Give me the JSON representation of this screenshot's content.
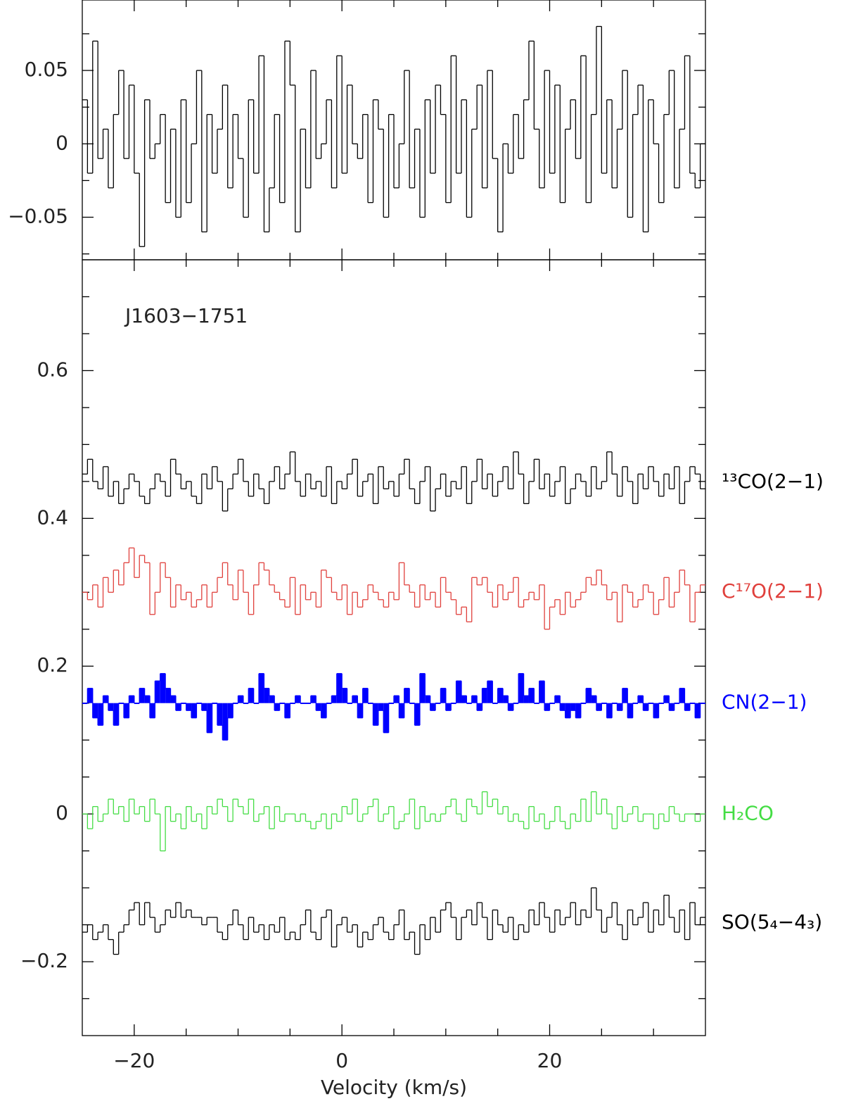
{
  "chart_data": [
    {
      "type": "step",
      "x": [
        -24.75,
        -24.25,
        -23.75,
        -23.25,
        -22.75,
        -22.25,
        -21.75,
        -21.25,
        -20.75,
        -20.25,
        -19.75,
        -19.25,
        -18.75,
        -18.25,
        -17.75,
        -17.25,
        -16.75,
        -16.25,
        -15.75,
        -15.25,
        -14.75,
        -14.25,
        -13.75,
        -13.25,
        -12.75,
        -12.25,
        -11.75,
        -11.25,
        -10.75,
        -10.25,
        -9.75,
        -9.25,
        -8.75,
        -8.25,
        -7.75,
        -7.25,
        -6.75,
        -6.25,
        -5.75,
        -5.25,
        -4.75,
        -4.25,
        -3.75,
        -3.25,
        -2.75,
        -2.25,
        -1.75,
        -1.25,
        -0.75,
        -0.25,
        0.25,
        0.75,
        1.25,
        1.75,
        2.25,
        2.75,
        3.25,
        3.75,
        4.25,
        4.75,
        5.25,
        5.75,
        6.25,
        6.75,
        7.25,
        7.75,
        8.25,
        8.75,
        9.25,
        9.75,
        10.25,
        10.75,
        11.25,
        11.75,
        12.25,
        12.75,
        13.25,
        13.75,
        14.25,
        14.75,
        15.25,
        15.75,
        16.25,
        16.75,
        17.25,
        17.75,
        18.25,
        18.75,
        19.25,
        19.75,
        20.25,
        20.75,
        21.25,
        21.75,
        22.25,
        22.75,
        23.25,
        23.75,
        24.25,
        24.75,
        25.25,
        25.75,
        26.25,
        26.75,
        27.25,
        27.75,
        28.25,
        28.75,
        29.25,
        29.75,
        30.25,
        30.75,
        31.25,
        31.75,
        32.25,
        32.75,
        33.25,
        33.75,
        34.25,
        34.75
      ],
      "series": [
        {
          "color": "#000000",
          "values": [
            0.03,
            -0.02,
            0.07,
            -0.01,
            0.01,
            -0.03,
            0.02,
            0.05,
            -0.01,
            0.04,
            -0.02,
            -0.07,
            0.03,
            -0.01,
            0.0,
            0.02,
            -0.04,
            0.01,
            -0.05,
            0.03,
            -0.04,
            0.0,
            0.05,
            -0.06,
            0.02,
            -0.02,
            0.01,
            0.04,
            -0.03,
            0.02,
            -0.01,
            -0.05,
            0.03,
            -0.02,
            0.06,
            -0.06,
            -0.03,
            0.02,
            -0.04,
            0.07,
            0.04,
            -0.06,
            0.01,
            -0.03,
            0.05,
            -0.01,
            0.0,
            0.03,
            -0.03,
            0.06,
            -0.02,
            0.04,
            0.0,
            -0.01,
            0.02,
            -0.04,
            0.03,
            0.01,
            -0.05,
            0.02,
            -0.03,
            0.0,
            0.05,
            -0.03,
            0.01,
            -0.05,
            0.03,
            -0.02,
            0.04,
            0.02,
            -0.04,
            0.06,
            -0.02,
            0.03,
            -0.05,
            0.01,
            0.04,
            -0.03,
            0.05,
            -0.01,
            -0.06,
            0.0,
            -0.02,
            0.02,
            -0.01,
            0.03,
            0.07,
            0.01,
            -0.03,
            0.05,
            -0.02,
            0.04,
            -0.04,
            0.01,
            0.03,
            -0.01,
            0.06,
            -0.04,
            0.02,
            0.08,
            -0.02,
            0.03,
            -0.03,
            0.01,
            0.05,
            -0.05,
            0.02,
            0.04,
            -0.06,
            0.03,
            0.0,
            -0.04,
            0.02,
            0.05,
            -0.03,
            0.01,
            0.06,
            -0.02,
            -0.03,
            0.0
          ]
        }
      ],
      "xlim": [
        -25,
        35
      ],
      "ylim": [
        -0.079,
        0.098
      ],
      "xticks": [
        {
          "value": -20,
          "label": "−20"
        },
        0,
        20
      ],
      "xminorticks": [
        -15,
        -10,
        -5,
        5,
        10,
        15,
        25,
        30
      ],
      "yticks": [
        {
          "value": -0.05,
          "label": "−0.05"
        },
        0,
        0.05
      ],
      "yminorticks": [
        -0.075,
        -0.025,
        0.025,
        0.075
      ]
    },
    {
      "type": "step",
      "annotation": "J1603−1751",
      "x_label": "Velocity (km/s)",
      "x": [
        -24.75,
        -24.25,
        -23.75,
        -23.25,
        -22.75,
        -22.25,
        -21.75,
        -21.25,
        -20.75,
        -20.25,
        -19.75,
        -19.25,
        -18.75,
        -18.25,
        -17.75,
        -17.25,
        -16.75,
        -16.25,
        -15.75,
        -15.25,
        -14.75,
        -14.25,
        -13.75,
        -13.25,
        -12.75,
        -12.25,
        -11.75,
        -11.25,
        -10.75,
        -10.25,
        -9.75,
        -9.25,
        -8.75,
        -8.25,
        -7.75,
        -7.25,
        -6.75,
        -6.25,
        -5.75,
        -5.25,
        -4.75,
        -4.25,
        -3.75,
        -3.25,
        -2.75,
        -2.25,
        -1.75,
        -1.25,
        -0.75,
        -0.25,
        0.25,
        0.75,
        1.25,
        1.75,
        2.25,
        2.75,
        3.25,
        3.75,
        4.25,
        4.75,
        5.25,
        5.75,
        6.25,
        6.75,
        7.25,
        7.75,
        8.25,
        8.75,
        9.25,
        9.75,
        10.25,
        10.75,
        11.25,
        11.75,
        12.25,
        12.75,
        13.25,
        13.75,
        14.25,
        14.75,
        15.25,
        15.75,
        16.25,
        16.75,
        17.25,
        17.75,
        18.25,
        18.75,
        19.25,
        19.75,
        20.25,
        20.75,
        21.25,
        21.75,
        22.25,
        22.75,
        23.25,
        23.75,
        24.25,
        24.75,
        25.25,
        25.75,
        26.25,
        26.75,
        27.25,
        27.75,
        28.25,
        28.75,
        29.25,
        29.75,
        30.25,
        30.75,
        31.25,
        31.75,
        32.25,
        32.75,
        33.25,
        33.75,
        34.25,
        34.75
      ],
      "series": [
        {
          "name": "¹³CO(2−1)",
          "color": "#000000",
          "values": [
            0.46,
            0.48,
            0.45,
            0.44,
            0.47,
            0.43,
            0.45,
            0.42,
            0.44,
            0.46,
            0.45,
            0.43,
            0.42,
            0.44,
            0.46,
            0.45,
            0.43,
            0.48,
            0.46,
            0.44,
            0.45,
            0.43,
            0.42,
            0.46,
            0.44,
            0.47,
            0.45,
            0.41,
            0.44,
            0.46,
            0.48,
            0.45,
            0.43,
            0.46,
            0.44,
            0.42,
            0.45,
            0.47,
            0.44,
            0.46,
            0.49,
            0.45,
            0.43,
            0.46,
            0.44,
            0.45,
            0.43,
            0.47,
            0.42,
            0.45,
            0.44,
            0.46,
            0.48,
            0.43,
            0.45,
            0.46,
            0.42,
            0.47,
            0.44,
            0.45,
            0.43,
            0.46,
            0.48,
            0.44,
            0.42,
            0.45,
            0.47,
            0.41,
            0.44,
            0.46,
            0.43,
            0.45,
            0.44,
            0.47,
            0.42,
            0.45,
            0.48,
            0.44,
            0.46,
            0.43,
            0.45,
            0.47,
            0.44,
            0.49,
            0.46,
            0.42,
            0.45,
            0.48,
            0.44,
            0.46,
            0.43,
            0.45,
            0.47,
            0.42,
            0.44,
            0.46,
            0.45,
            0.43,
            0.47,
            0.44,
            0.45,
            0.49,
            0.46,
            0.43,
            0.47,
            0.45,
            0.42,
            0.46,
            0.44,
            0.47,
            0.45,
            0.43,
            0.46,
            0.44,
            0.47,
            0.42,
            0.45,
            0.47,
            0.46,
            0.44
          ]
        },
        {
          "name": "C¹⁷O(2−1)",
          "color": "#e0403c",
          "values": [
            0.3,
            0.29,
            0.31,
            0.28,
            0.32,
            0.3,
            0.33,
            0.31,
            0.34,
            0.36,
            0.32,
            0.35,
            0.34,
            0.27,
            0.3,
            0.34,
            0.32,
            0.28,
            0.31,
            0.29,
            0.3,
            0.28,
            0.29,
            0.31,
            0.28,
            0.3,
            0.32,
            0.34,
            0.31,
            0.29,
            0.33,
            0.3,
            0.27,
            0.31,
            0.34,
            0.33,
            0.31,
            0.3,
            0.29,
            0.28,
            0.32,
            0.27,
            0.31,
            0.29,
            0.3,
            0.28,
            0.33,
            0.32,
            0.3,
            0.29,
            0.31,
            0.27,
            0.3,
            0.28,
            0.29,
            0.31,
            0.3,
            0.29,
            0.28,
            0.3,
            0.29,
            0.34,
            0.31,
            0.3,
            0.28,
            0.31,
            0.29,
            0.3,
            0.28,
            0.32,
            0.3,
            0.29,
            0.27,
            0.28,
            0.26,
            0.32,
            0.31,
            0.32,
            0.3,
            0.28,
            0.31,
            0.29,
            0.3,
            0.32,
            0.28,
            0.29,
            0.3,
            0.29,
            0.31,
            0.25,
            0.28,
            0.29,
            0.27,
            0.3,
            0.28,
            0.29,
            0.3,
            0.32,
            0.31,
            0.33,
            0.31,
            0.29,
            0.3,
            0.26,
            0.31,
            0.3,
            0.28,
            0.29,
            0.31,
            0.3,
            0.27,
            0.29,
            0.32,
            0.28,
            0.3,
            0.33,
            0.31,
            0.26,
            0.3,
            0.31
          ]
        },
        {
          "name": "CN(2−1)",
          "color": "#0000ff",
          "fill_baseline": 0.15,
          "values": [
            0.15,
            0.17,
            0.13,
            0.12,
            0.16,
            0.14,
            0.12,
            0.15,
            0.13,
            0.16,
            0.15,
            0.17,
            0.16,
            0.13,
            0.18,
            0.19,
            0.17,
            0.16,
            0.14,
            0.15,
            0.14,
            0.13,
            0.15,
            0.14,
            0.11,
            0.15,
            0.12,
            0.1,
            0.13,
            0.15,
            0.16,
            0.15,
            0.17,
            0.15,
            0.19,
            0.17,
            0.16,
            0.14,
            0.15,
            0.13,
            0.15,
            0.16,
            0.15,
            0.15,
            0.16,
            0.14,
            0.13,
            0.15,
            0.16,
            0.19,
            0.17,
            0.15,
            0.16,
            0.13,
            0.17,
            0.15,
            0.12,
            0.14,
            0.11,
            0.15,
            0.16,
            0.13,
            0.17,
            0.15,
            0.12,
            0.19,
            0.16,
            0.14,
            0.15,
            0.17,
            0.14,
            0.15,
            0.18,
            0.16,
            0.15,
            0.16,
            0.14,
            0.17,
            0.18,
            0.15,
            0.17,
            0.16,
            0.14,
            0.15,
            0.19,
            0.16,
            0.17,
            0.15,
            0.18,
            0.14,
            0.15,
            0.16,
            0.14,
            0.13,
            0.14,
            0.13,
            0.15,
            0.17,
            0.16,
            0.14,
            0.15,
            0.13,
            0.15,
            0.14,
            0.17,
            0.13,
            0.15,
            0.16,
            0.14,
            0.15,
            0.13,
            0.15,
            0.16,
            0.14,
            0.15,
            0.17,
            0.14,
            0.15,
            0.13,
            0.15
          ]
        },
        {
          "name": "H₂CO",
          "color": "#44dd44",
          "values": [
            0.0,
            -0.02,
            0.01,
            -0.01,
            0.0,
            0.02,
            0.0,
            0.01,
            -0.01,
            0.02,
            0.0,
            0.01,
            -0.01,
            0.02,
            0.0,
            -0.05,
            0.01,
            -0.01,
            0.0,
            -0.02,
            0.01,
            -0.01,
            0.0,
            -0.02,
            0.01,
            0.0,
            0.02,
            0.01,
            -0.01,
            0.02,
            0.01,
            0.0,
            0.02,
            -0.01,
            0.0,
            0.01,
            -0.02,
            0.01,
            -0.01,
            0.0,
            0.0,
            -0.01,
            0.0,
            -0.01,
            -0.02,
            -0.01,
            0.0,
            -0.02,
            0.0,
            -0.01,
            0.01,
            0.0,
            0.02,
            -0.01,
            0.0,
            0.01,
            0.02,
            -0.01,
            0.0,
            0.01,
            -0.02,
            -0.01,
            0.0,
            0.02,
            -0.02,
            0.01,
            -0.01,
            0.0,
            -0.01,
            0.0,
            0.01,
            0.02,
            0.0,
            -0.01,
            0.02,
            0.01,
            0.0,
            0.03,
            0.01,
            0.02,
            0.0,
            0.01,
            -0.01,
            0.0,
            -0.01,
            -0.02,
            0.01,
            -0.01,
            0.0,
            -0.02,
            -0.01,
            0.01,
            -0.01,
            -0.02,
            0.0,
            -0.01,
            0.02,
            -0.01,
            0.03,
            0.0,
            0.02,
            0.0,
            -0.02,
            0.01,
            -0.01,
            0.0,
            0.01,
            -0.01,
            0.0,
            0.0,
            -0.02,
            0.0,
            -0.01,
            0.01,
            0.0,
            -0.01,
            0.0,
            0.0,
            -0.01,
            0.0
          ]
        },
        {
          "name": "SO(5₄−4₃)",
          "color": "#000000",
          "values": [
            -0.16,
            -0.15,
            -0.17,
            -0.16,
            -0.15,
            -0.17,
            -0.19,
            -0.16,
            -0.15,
            -0.13,
            -0.12,
            -0.15,
            -0.12,
            -0.14,
            -0.16,
            -0.15,
            -0.13,
            -0.14,
            -0.12,
            -0.14,
            -0.13,
            -0.14,
            -0.14,
            -0.15,
            -0.14,
            -0.14,
            -0.16,
            -0.17,
            -0.15,
            -0.13,
            -0.15,
            -0.17,
            -0.14,
            -0.16,
            -0.15,
            -0.17,
            -0.15,
            -0.16,
            -0.14,
            -0.17,
            -0.16,
            -0.17,
            -0.15,
            -0.13,
            -0.16,
            -0.17,
            -0.14,
            -0.13,
            -0.18,
            -0.15,
            -0.14,
            -0.16,
            -0.15,
            -0.18,
            -0.16,
            -0.17,
            -0.15,
            -0.14,
            -0.16,
            -0.17,
            -0.15,
            -0.13,
            -0.17,
            -0.16,
            -0.19,
            -0.15,
            -0.17,
            -0.14,
            -0.16,
            -0.13,
            -0.12,
            -0.14,
            -0.17,
            -0.14,
            -0.13,
            -0.15,
            -0.12,
            -0.14,
            -0.17,
            -0.13,
            -0.15,
            -0.16,
            -0.14,
            -0.17,
            -0.15,
            -0.16,
            -0.13,
            -0.15,
            -0.12,
            -0.14,
            -0.16,
            -0.13,
            -0.15,
            -0.14,
            -0.12,
            -0.15,
            -0.13,
            -0.14,
            -0.1,
            -0.13,
            -0.16,
            -0.14,
            -0.12,
            -0.15,
            -0.17,
            -0.13,
            -0.15,
            -0.14,
            -0.12,
            -0.16,
            -0.13,
            -0.15,
            -0.11,
            -0.14,
            -0.16,
            -0.13,
            -0.17,
            -0.12,
            -0.15,
            -0.14
          ]
        }
      ],
      "xlim": [
        -25,
        35
      ],
      "ylim": [
        -0.3,
        0.75
      ],
      "xticks": [
        {
          "value": -20,
          "label": "−20"
        },
        0,
        20
      ],
      "xminorticks": [
        -15,
        -10,
        -5,
        5,
        10,
        15,
        25,
        30
      ],
      "yticks": [
        {
          "value": -0.2,
          "label": "−0.2"
        },
        0,
        0.2,
        0.4,
        0.6
      ],
      "yminorticks": [
        -0.25,
        -0.15,
        -0.1,
        -0.05,
        0.05,
        0.1,
        0.15,
        0.25,
        0.3,
        0.35,
        0.45,
        0.5,
        0.55,
        0.65,
        0.7
      ]
    }
  ]
}
